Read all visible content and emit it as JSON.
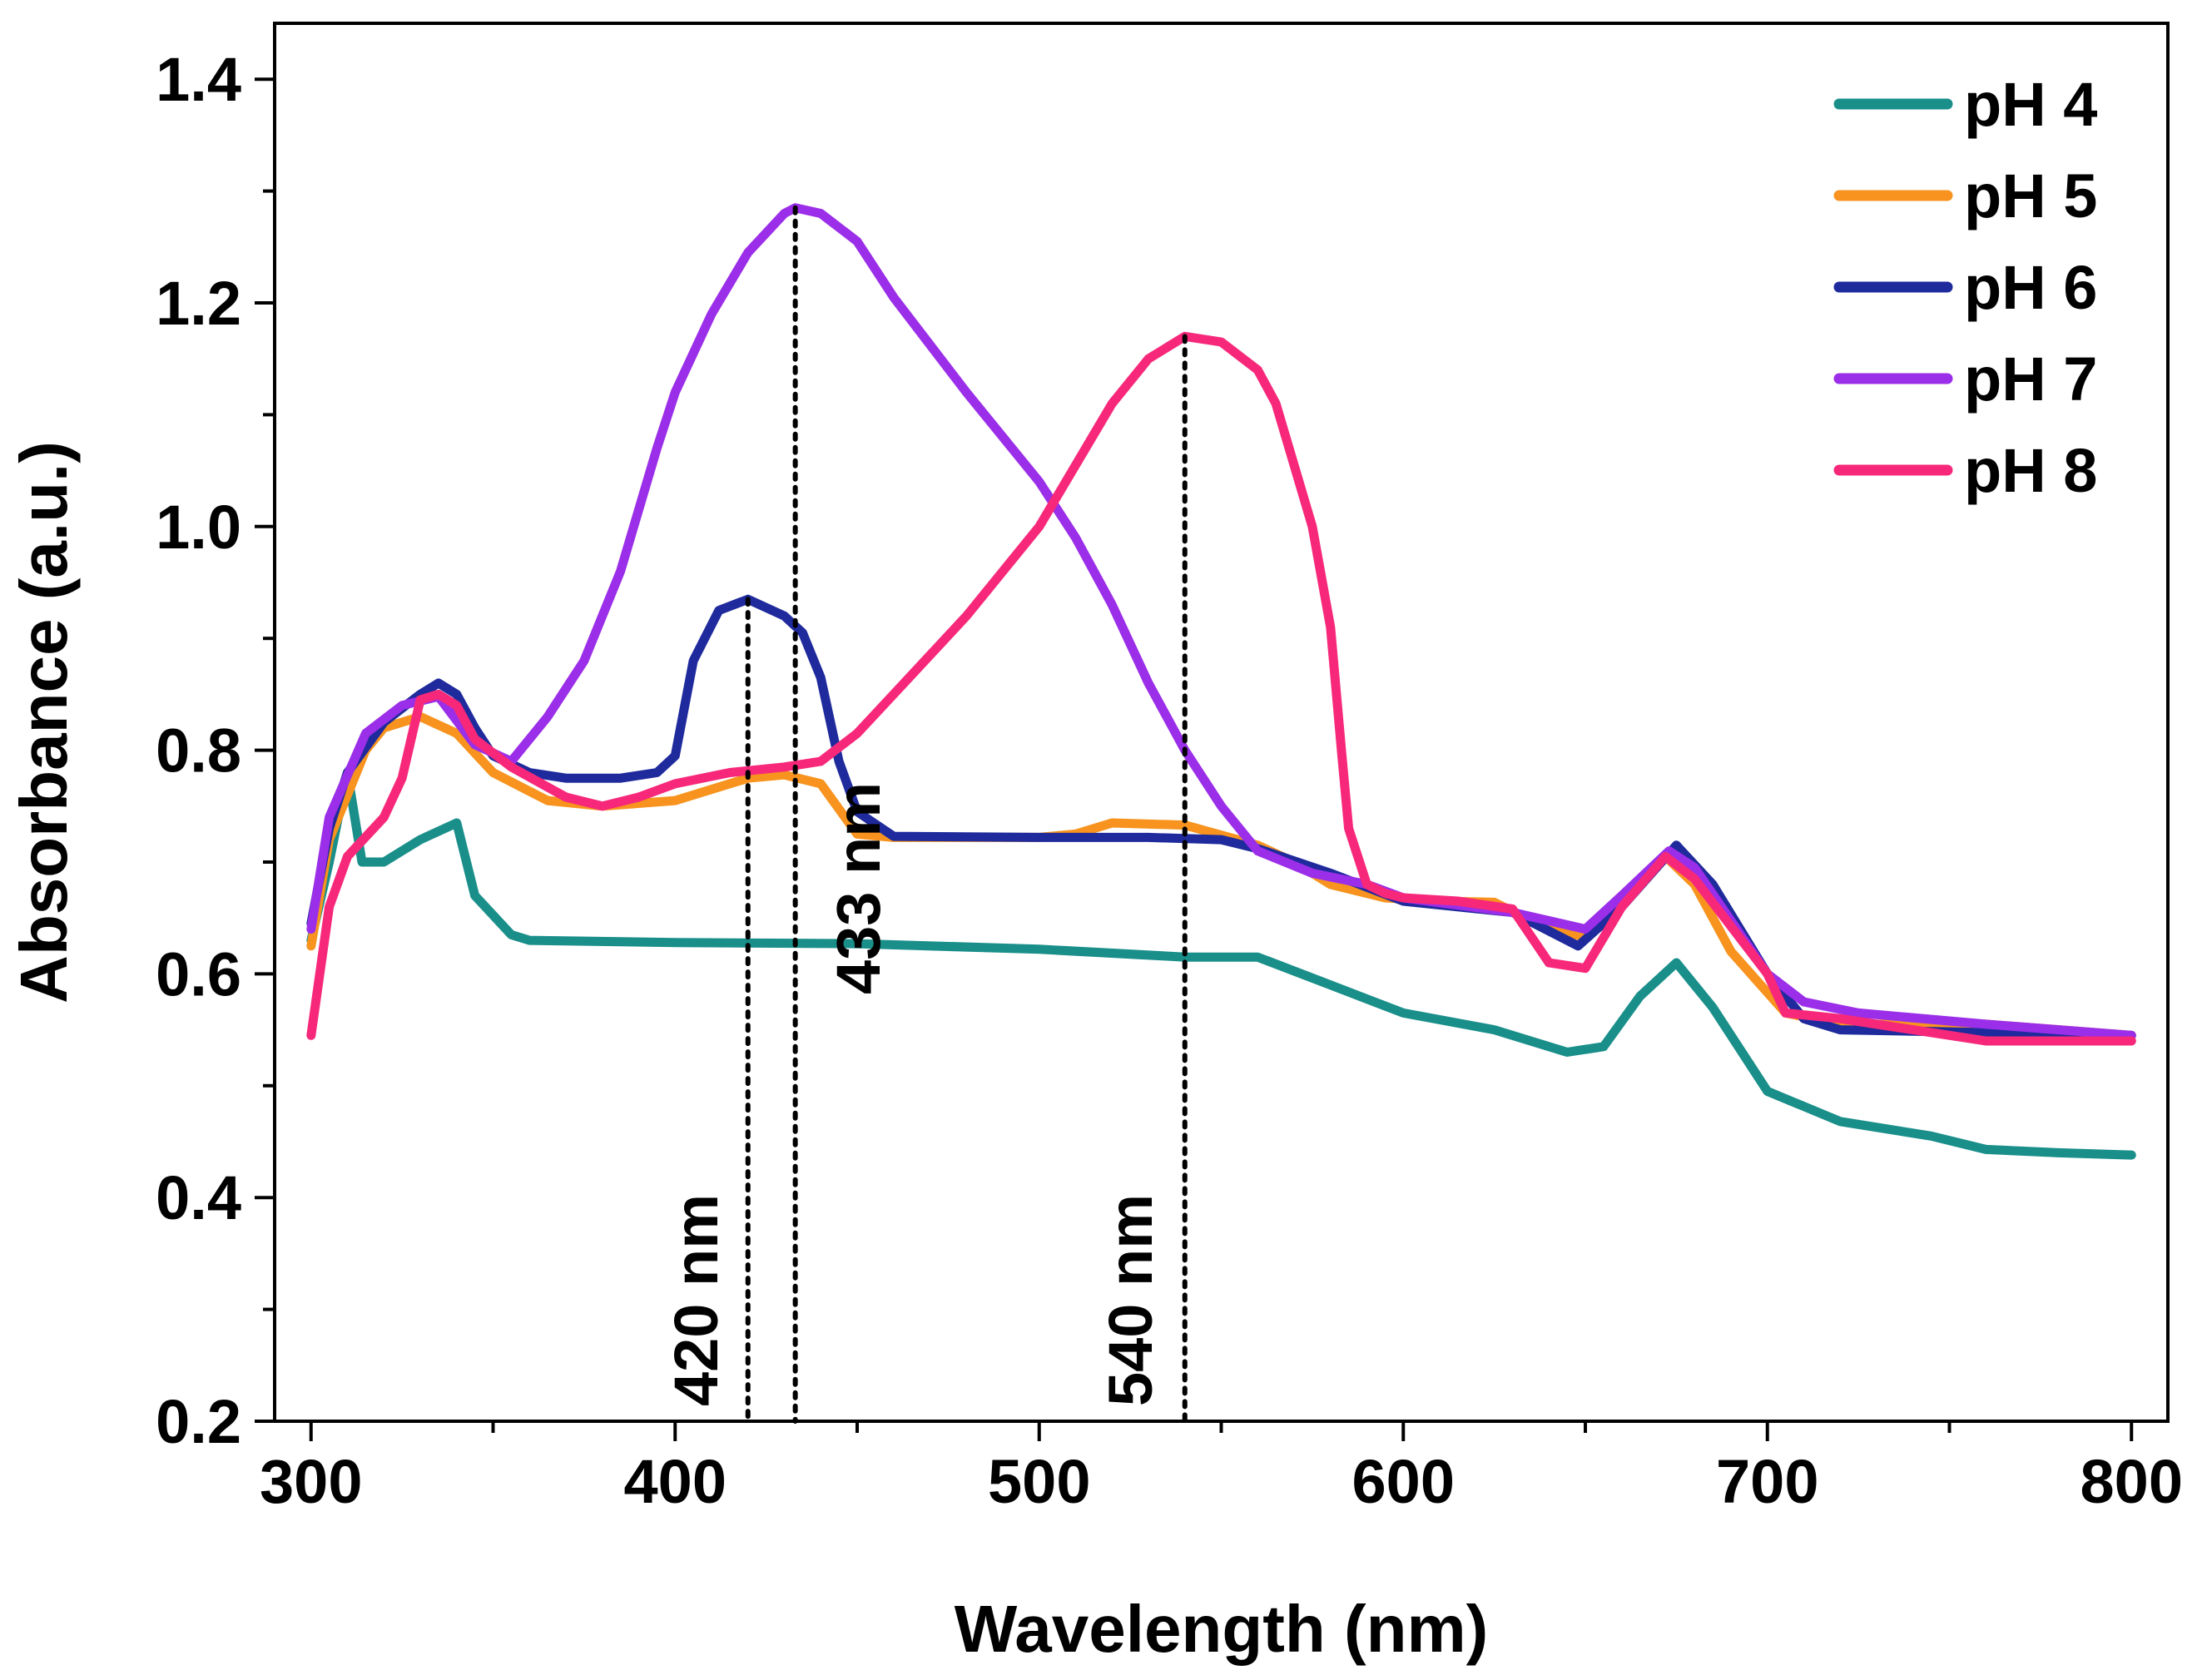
{
  "chart_data": {
    "type": "line",
    "title": "",
    "xlabel": "Wavelength (nm)",
    "ylabel": "Absorbance (a.u.)",
    "xlim": [
      290,
      810
    ],
    "ylim": [
      0.2,
      1.45
    ],
    "xticks": [
      300,
      400,
      500,
      600,
      700,
      800
    ],
    "xtick_labels": [
      "300",
      "400",
      "500",
      "600",
      "700",
      "800"
    ],
    "yticks": [
      0.2,
      0.4,
      0.6,
      0.8,
      1.0,
      1.2,
      1.4
    ],
    "ytick_labels": [
      "0.2",
      "0.4",
      "0.6",
      "0.8",
      "1.0",
      "1.2",
      "1.4"
    ],
    "grid": false,
    "legend_position": "top-right",
    "series": [
      {
        "name": "pH 4",
        "color": "#1a8f8a",
        "points": [
          [
            300,
            0.63
          ],
          [
            305,
            0.7
          ],
          [
            310,
            0.78
          ],
          [
            314,
            0.7
          ],
          [
            320,
            0.7
          ],
          [
            330,
            0.72
          ],
          [
            340,
            0.735
          ],
          [
            345,
            0.67
          ],
          [
            355,
            0.635
          ],
          [
            360,
            0.63
          ],
          [
            400,
            0.628
          ],
          [
            450,
            0.627
          ],
          [
            500,
            0.622
          ],
          [
            540,
            0.615
          ],
          [
            560,
            0.615
          ],
          [
            580,
            0.59
          ],
          [
            600,
            0.565
          ],
          [
            625,
            0.55
          ],
          [
            645,
            0.53
          ],
          [
            655,
            0.535
          ],
          [
            665,
            0.58
          ],
          [
            675,
            0.61
          ],
          [
            685,
            0.57
          ],
          [
            700,
            0.495
          ],
          [
            720,
            0.468
          ],
          [
            745,
            0.455
          ],
          [
            760,
            0.443
          ],
          [
            780,
            0.44
          ],
          [
            800,
            0.438
          ]
        ]
      },
      {
        "name": "pH 5",
        "color": "#f7931e",
        "points": [
          [
            300,
            0.625
          ],
          [
            305,
            0.72
          ],
          [
            315,
            0.8
          ],
          [
            320,
            0.82
          ],
          [
            330,
            0.83
          ],
          [
            340,
            0.815
          ],
          [
            350,
            0.78
          ],
          [
            365,
            0.755
          ],
          [
            380,
            0.75
          ],
          [
            400,
            0.755
          ],
          [
            410,
            0.765
          ],
          [
            420,
            0.775
          ],
          [
            430,
            0.778
          ],
          [
            440,
            0.77
          ],
          [
            450,
            0.725
          ],
          [
            460,
            0.722
          ],
          [
            500,
            0.722
          ],
          [
            510,
            0.725
          ],
          [
            520,
            0.735
          ],
          [
            540,
            0.733
          ],
          [
            560,
            0.715
          ],
          [
            570,
            0.7
          ],
          [
            580,
            0.68
          ],
          [
            595,
            0.668
          ],
          [
            610,
            0.665
          ],
          [
            625,
            0.664
          ],
          [
            640,
            0.64
          ],
          [
            650,
            0.633
          ],
          [
            660,
            0.66
          ],
          [
            672,
            0.705
          ],
          [
            680,
            0.68
          ],
          [
            690,
            0.62
          ],
          [
            705,
            0.565
          ],
          [
            720,
            0.555
          ],
          [
            760,
            0.555
          ],
          [
            800,
            0.545
          ]
        ]
      },
      {
        "name": "pH 6",
        "color": "#1f2a9c",
        "points": [
          [
            300,
            0.645
          ],
          [
            305,
            0.73
          ],
          [
            310,
            0.78
          ],
          [
            320,
            0.825
          ],
          [
            330,
            0.85
          ],
          [
            335,
            0.86
          ],
          [
            340,
            0.85
          ],
          [
            345,
            0.82
          ],
          [
            350,
            0.795
          ],
          [
            360,
            0.78
          ],
          [
            370,
            0.775
          ],
          [
            385,
            0.775
          ],
          [
            395,
            0.78
          ],
          [
            400,
            0.795
          ],
          [
            405,
            0.88
          ],
          [
            412,
            0.925
          ],
          [
            420,
            0.935
          ],
          [
            430,
            0.92
          ],
          [
            435,
            0.905
          ],
          [
            440,
            0.865
          ],
          [
            445,
            0.79
          ],
          [
            450,
            0.745
          ],
          [
            460,
            0.723
          ],
          [
            500,
            0.722
          ],
          [
            530,
            0.722
          ],
          [
            550,
            0.72
          ],
          [
            560,
            0.712
          ],
          [
            580,
            0.69
          ],
          [
            600,
            0.665
          ],
          [
            630,
            0.655
          ],
          [
            648,
            0.625
          ],
          [
            660,
            0.66
          ],
          [
            675,
            0.715
          ],
          [
            685,
            0.68
          ],
          [
            700,
            0.6
          ],
          [
            710,
            0.56
          ],
          [
            720,
            0.55
          ],
          [
            800,
            0.545
          ]
        ]
      },
      {
        "name": "pH 7",
        "color": "#9b2ee8",
        "points": [
          [
            300,
            0.64
          ],
          [
            305,
            0.74
          ],
          [
            315,
            0.815
          ],
          [
            325,
            0.84
          ],
          [
            335,
            0.848
          ],
          [
            345,
            0.805
          ],
          [
            355,
            0.79
          ],
          [
            365,
            0.83
          ],
          [
            375,
            0.88
          ],
          [
            385,
            0.96
          ],
          [
            395,
            1.07
          ],
          [
            400,
            1.12
          ],
          [
            410,
            1.19
          ],
          [
            420,
            1.245
          ],
          [
            430,
            1.28
          ],
          [
            433,
            1.285
          ],
          [
            440,
            1.28
          ],
          [
            450,
            1.255
          ],
          [
            460,
            1.205
          ],
          [
            480,
            1.12
          ],
          [
            500,
            1.04
          ],
          [
            510,
            0.99
          ],
          [
            520,
            0.93
          ],
          [
            530,
            0.86
          ],
          [
            540,
            0.8
          ],
          [
            550,
            0.75
          ],
          [
            560,
            0.71
          ],
          [
            575,
            0.69
          ],
          [
            590,
            0.68
          ],
          [
            600,
            0.668
          ],
          [
            630,
            0.655
          ],
          [
            650,
            0.64
          ],
          [
            660,
            0.67
          ],
          [
            673,
            0.71
          ],
          [
            680,
            0.695
          ],
          [
            700,
            0.6
          ],
          [
            710,
            0.575
          ],
          [
            725,
            0.565
          ],
          [
            760,
            0.555
          ],
          [
            800,
            0.545
          ]
        ]
      },
      {
        "name": "pH 8",
        "color": "#f7287a",
        "points": [
          [
            300,
            0.545
          ],
          [
            305,
            0.66
          ],
          [
            310,
            0.705
          ],
          [
            320,
            0.74
          ],
          [
            325,
            0.775
          ],
          [
            330,
            0.845
          ],
          [
            335,
            0.85
          ],
          [
            340,
            0.84
          ],
          [
            345,
            0.81
          ],
          [
            355,
            0.785
          ],
          [
            370,
            0.758
          ],
          [
            380,
            0.75
          ],
          [
            390,
            0.758
          ],
          [
            400,
            0.77
          ],
          [
            415,
            0.78
          ],
          [
            430,
            0.785
          ],
          [
            440,
            0.79
          ],
          [
            450,
            0.815
          ],
          [
            460,
            0.85
          ],
          [
            480,
            0.92
          ],
          [
            500,
            1.0
          ],
          [
            520,
            1.11
          ],
          [
            530,
            1.15
          ],
          [
            540,
            1.17
          ],
          [
            550,
            1.165
          ],
          [
            560,
            1.14
          ],
          [
            565,
            1.11
          ],
          [
            575,
            1.0
          ],
          [
            580,
            0.91
          ],
          [
            583,
            0.8
          ],
          [
            585,
            0.73
          ],
          [
            590,
            0.68
          ],
          [
            595,
            0.672
          ],
          [
            600,
            0.668
          ],
          [
            615,
            0.665
          ],
          [
            630,
            0.658
          ],
          [
            640,
            0.61
          ],
          [
            650,
            0.605
          ],
          [
            660,
            0.66
          ],
          [
            672,
            0.705
          ],
          [
            680,
            0.685
          ],
          [
            700,
            0.6
          ],
          [
            705,
            0.565
          ],
          [
            720,
            0.56
          ],
          [
            740,
            0.55
          ],
          [
            760,
            0.54
          ],
          [
            800,
            0.54
          ]
        ]
      }
    ],
    "annotations": [
      {
        "label": "420 nm",
        "x": 420,
        "y_top": 0.935,
        "y_bottom": 0.2
      },
      {
        "label": "433 nm",
        "x": 433,
        "y_top": 1.285,
        "y_bottom": 0.2
      },
      {
        "label": "540 nm",
        "x": 540,
        "y_top": 1.17,
        "y_bottom": 0.2
      }
    ]
  }
}
